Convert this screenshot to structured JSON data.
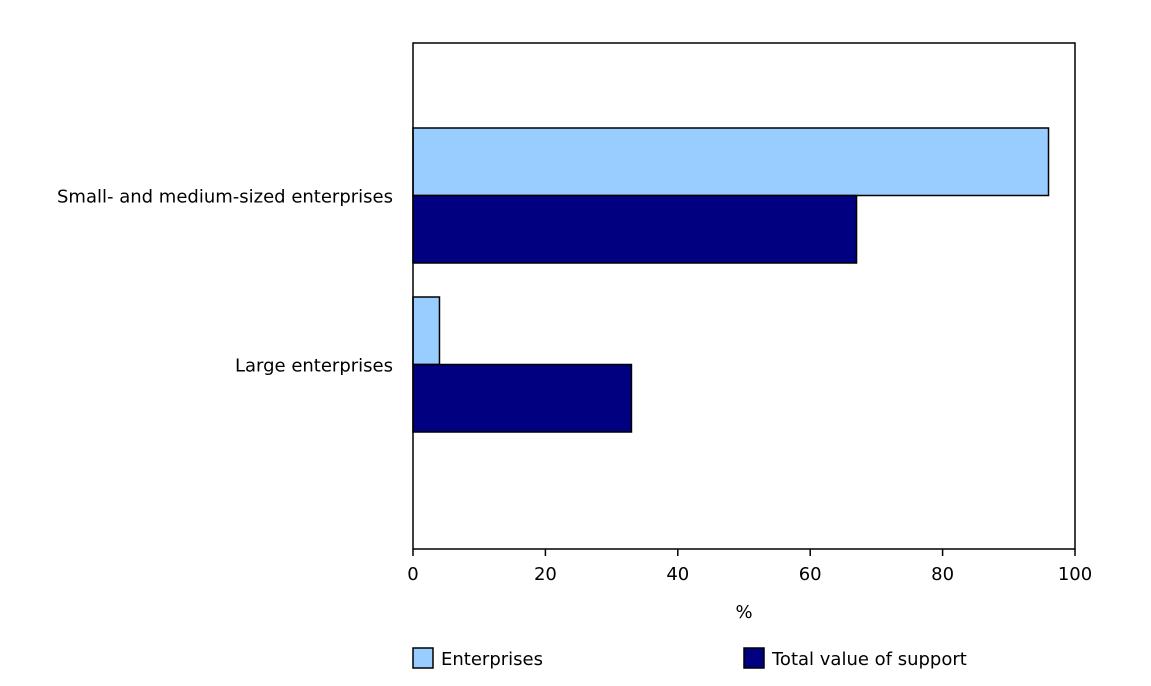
{
  "chart_data": {
    "type": "bar",
    "orientation": "horizontal",
    "title": "",
    "xlabel": "%",
    "ylabel": "",
    "xlim": [
      0,
      100
    ],
    "xticks": [
      0,
      20,
      40,
      60,
      80,
      100
    ],
    "grid": false,
    "legend_position": "bottom",
    "categories": [
      "Small- and medium-sized enterprises",
      "Large enterprises"
    ],
    "series": [
      {
        "name": "Enterprises",
        "values": [
          96,
          4
        ],
        "color": "#99CCFF"
      },
      {
        "name": "Total value of support",
        "values": [
          67,
          33
        ],
        "color": "#000080"
      }
    ]
  }
}
